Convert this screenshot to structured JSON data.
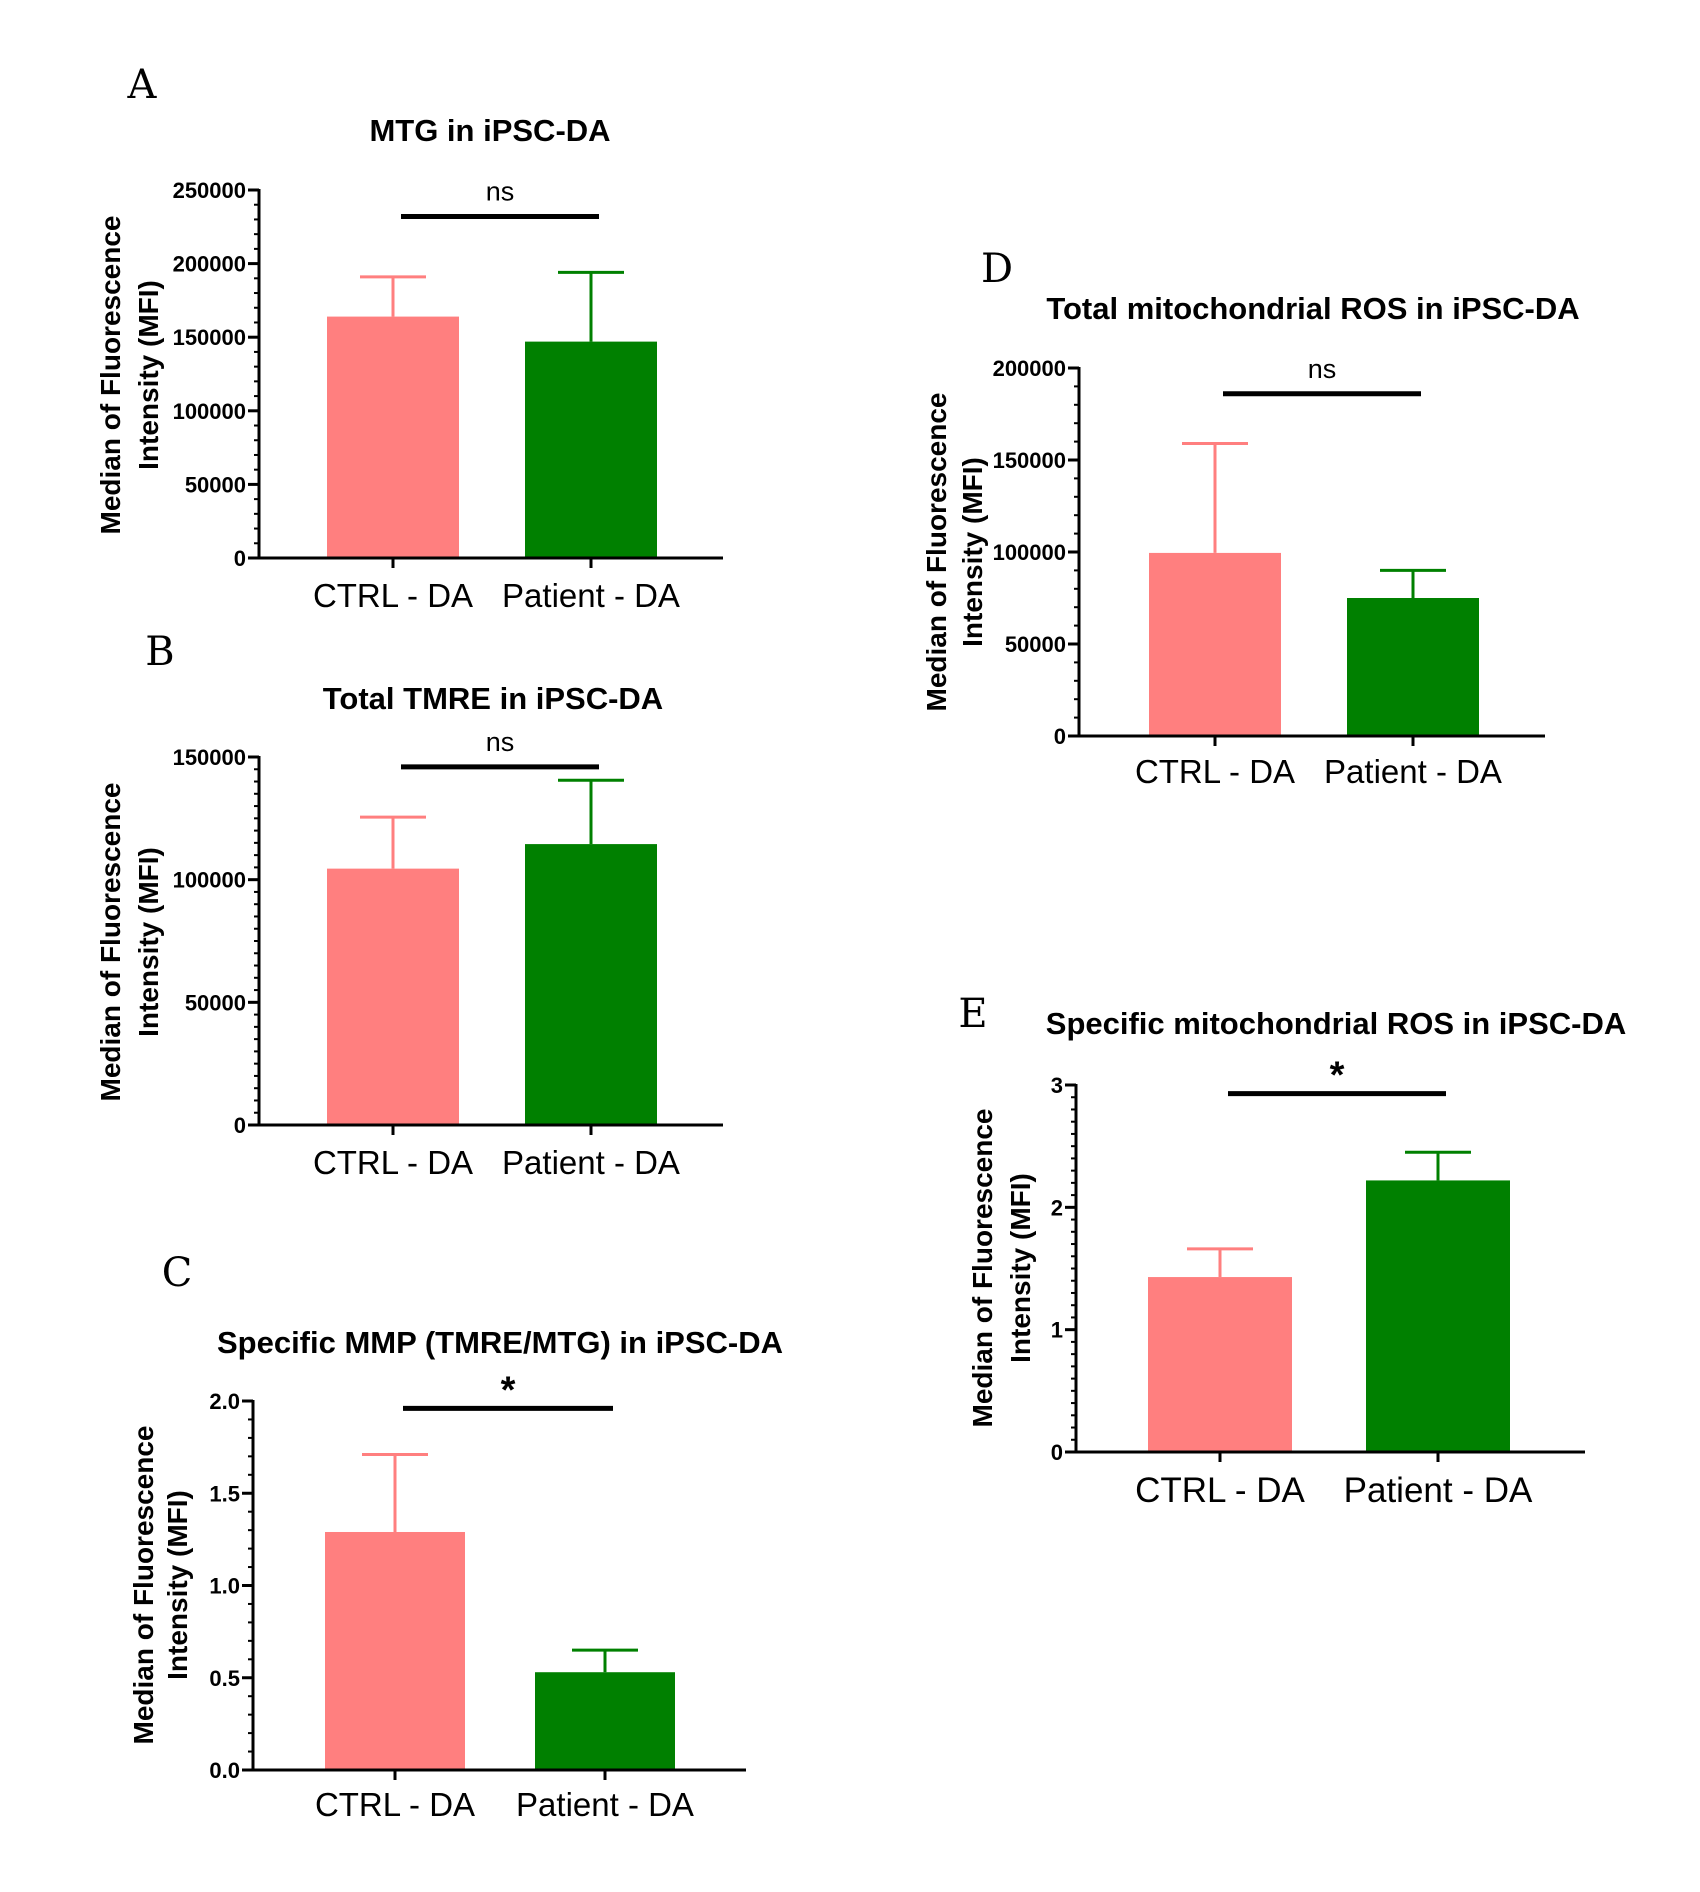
{
  "colors": {
    "ctrl": "#FF7F7F",
    "patient": "#008000",
    "axis": "#000000"
  },
  "chart_data": [
    {
      "id": "A",
      "panel": "A",
      "type": "bar",
      "title": "MTG in iPSC-DA",
      "ylabel": [
        "Median of Fluorescence",
        "Intensity (MFI)"
      ],
      "categories": [
        "CTRL - DA",
        "Patient - DA"
      ],
      "values": [
        164000,
        147000
      ],
      "errors": [
        27000,
        47000
      ],
      "ylim": [
        0,
        250000
      ],
      "major_ticks": [
        0,
        50000,
        100000,
        150000,
        200000,
        250000
      ],
      "tick_labels": [
        "0",
        "50000",
        "100000",
        "150000",
        "200000",
        "250000"
      ],
      "minor_step": 10000,
      "significance": {
        "label": "ns",
        "value": 232000
      }
    },
    {
      "id": "B",
      "panel": "B",
      "type": "bar",
      "title": "Total TMRE in iPSC-DA",
      "ylabel": [
        "Median of Fluorescence",
        "Intensity (MFI)"
      ],
      "categories": [
        "CTRL - DA",
        "Patient - DA"
      ],
      "values": [
        104500,
        114500
      ],
      "errors": [
        21000,
        26000
      ],
      "ylim": [
        0,
        150000
      ],
      "major_ticks": [
        0,
        50000,
        100000,
        150000
      ],
      "tick_labels": [
        "0",
        "50000",
        "100000",
        "150000"
      ],
      "minor_step": 5000,
      "significance": {
        "label": "ns",
        "value": 146000
      }
    },
    {
      "id": "C",
      "panel": "C",
      "type": "bar",
      "title": "Specific MMP (TMRE/MTG) in iPSC-DA",
      "ylabel": [
        "Median of Fluorescence",
        "Intensity (MFI)"
      ],
      "categories": [
        "CTRL - DA",
        "Patient - DA"
      ],
      "values": [
        1.29,
        0.53
      ],
      "errors": [
        0.42,
        0.12
      ],
      "ylim": [
        0,
        2.0
      ],
      "major_ticks": [
        0,
        0.5,
        1.0,
        1.5,
        2.0
      ],
      "tick_labels": [
        "0.0",
        "0.5",
        "1.0",
        "1.5",
        "2.0"
      ],
      "minor_step": 0.1,
      "significance": {
        "label": "*",
        "value": 1.96
      }
    },
    {
      "id": "D",
      "panel": "D",
      "type": "bar",
      "title": "Total mitochondrial ROS in iPSC-DA",
      "ylabel": [
        "Median of Fluorescence",
        "Intensity (MFI)"
      ],
      "categories": [
        "CTRL - DA",
        "Patient - DA"
      ],
      "values": [
        99500,
        75000
      ],
      "errors": [
        59500,
        15000
      ],
      "ylim": [
        0,
        200000
      ],
      "major_ticks": [
        0,
        50000,
        100000,
        150000,
        200000
      ],
      "tick_labels": [
        "0",
        "50000",
        "100000",
        "150000",
        "200000"
      ],
      "minor_step": 10000,
      "significance": {
        "label": "ns",
        "value": 186000
      }
    },
    {
      "id": "E",
      "panel": "E",
      "type": "bar",
      "title": "Specific mitochondrial ROS in iPSC-DA",
      "ylabel": [
        "Median of Fluorescence",
        "Intensity (MFI)"
      ],
      "categories": [
        "CTRL - DA",
        "Patient - DA"
      ],
      "values": [
        1.43,
        2.22
      ],
      "errors": [
        0.23,
        0.23
      ],
      "ylim": [
        0,
        3
      ],
      "major_ticks": [
        0,
        1,
        2,
        3
      ],
      "tick_labels": [
        "0",
        "1",
        "2",
        "3"
      ],
      "minor_step": 0.1,
      "significance": {
        "label": "*",
        "value": 2.93
      }
    }
  ]
}
